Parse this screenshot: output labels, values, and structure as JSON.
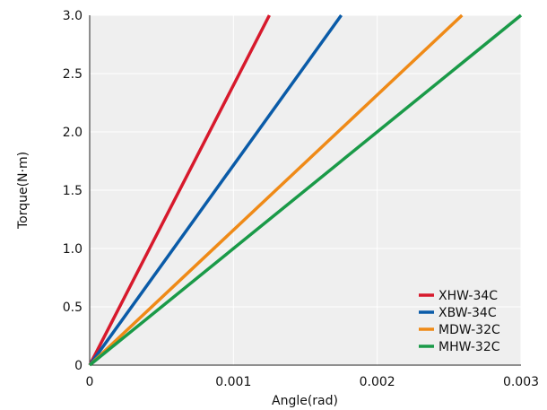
{
  "chart_data": {
    "type": "line",
    "title": "",
    "xlabel": "Angle(rad)",
    "ylabel": "Torque(N·m)",
    "xlim": [
      0,
      0.003
    ],
    "ylim": [
      0,
      3.0
    ],
    "x_ticks": [
      0,
      0.001,
      0.002,
      0.003
    ],
    "x_tick_labels": [
      "0",
      "0.001",
      "0.002",
      "0.003"
    ],
    "y_ticks": [
      0,
      0.5,
      1.0,
      1.5,
      2.0,
      2.5,
      3.0
    ],
    "y_tick_labels": [
      "0",
      "0.5",
      "1.0",
      "1.5",
      "2.0",
      "2.5",
      "3.0"
    ],
    "grid": true,
    "legend_position": "bottom-right",
    "series": [
      {
        "name": "XHW-34C",
        "color": "#d7192c",
        "x": [
          0,
          0.00125
        ],
        "y": [
          0,
          3.0
        ]
      },
      {
        "name": "XBW-34C",
        "color": "#0a5ba8",
        "x": [
          0,
          0.00175
        ],
        "y": [
          0,
          3.0
        ]
      },
      {
        "name": "MDW-32C",
        "color": "#ef8a17",
        "x": [
          0,
          0.00259
        ],
        "y": [
          0,
          3.0
        ]
      },
      {
        "name": "MHW-32C",
        "color": "#1a9a48",
        "x": [
          0,
          0.003
        ],
        "y": [
          0,
          3.0
        ]
      }
    ]
  }
}
